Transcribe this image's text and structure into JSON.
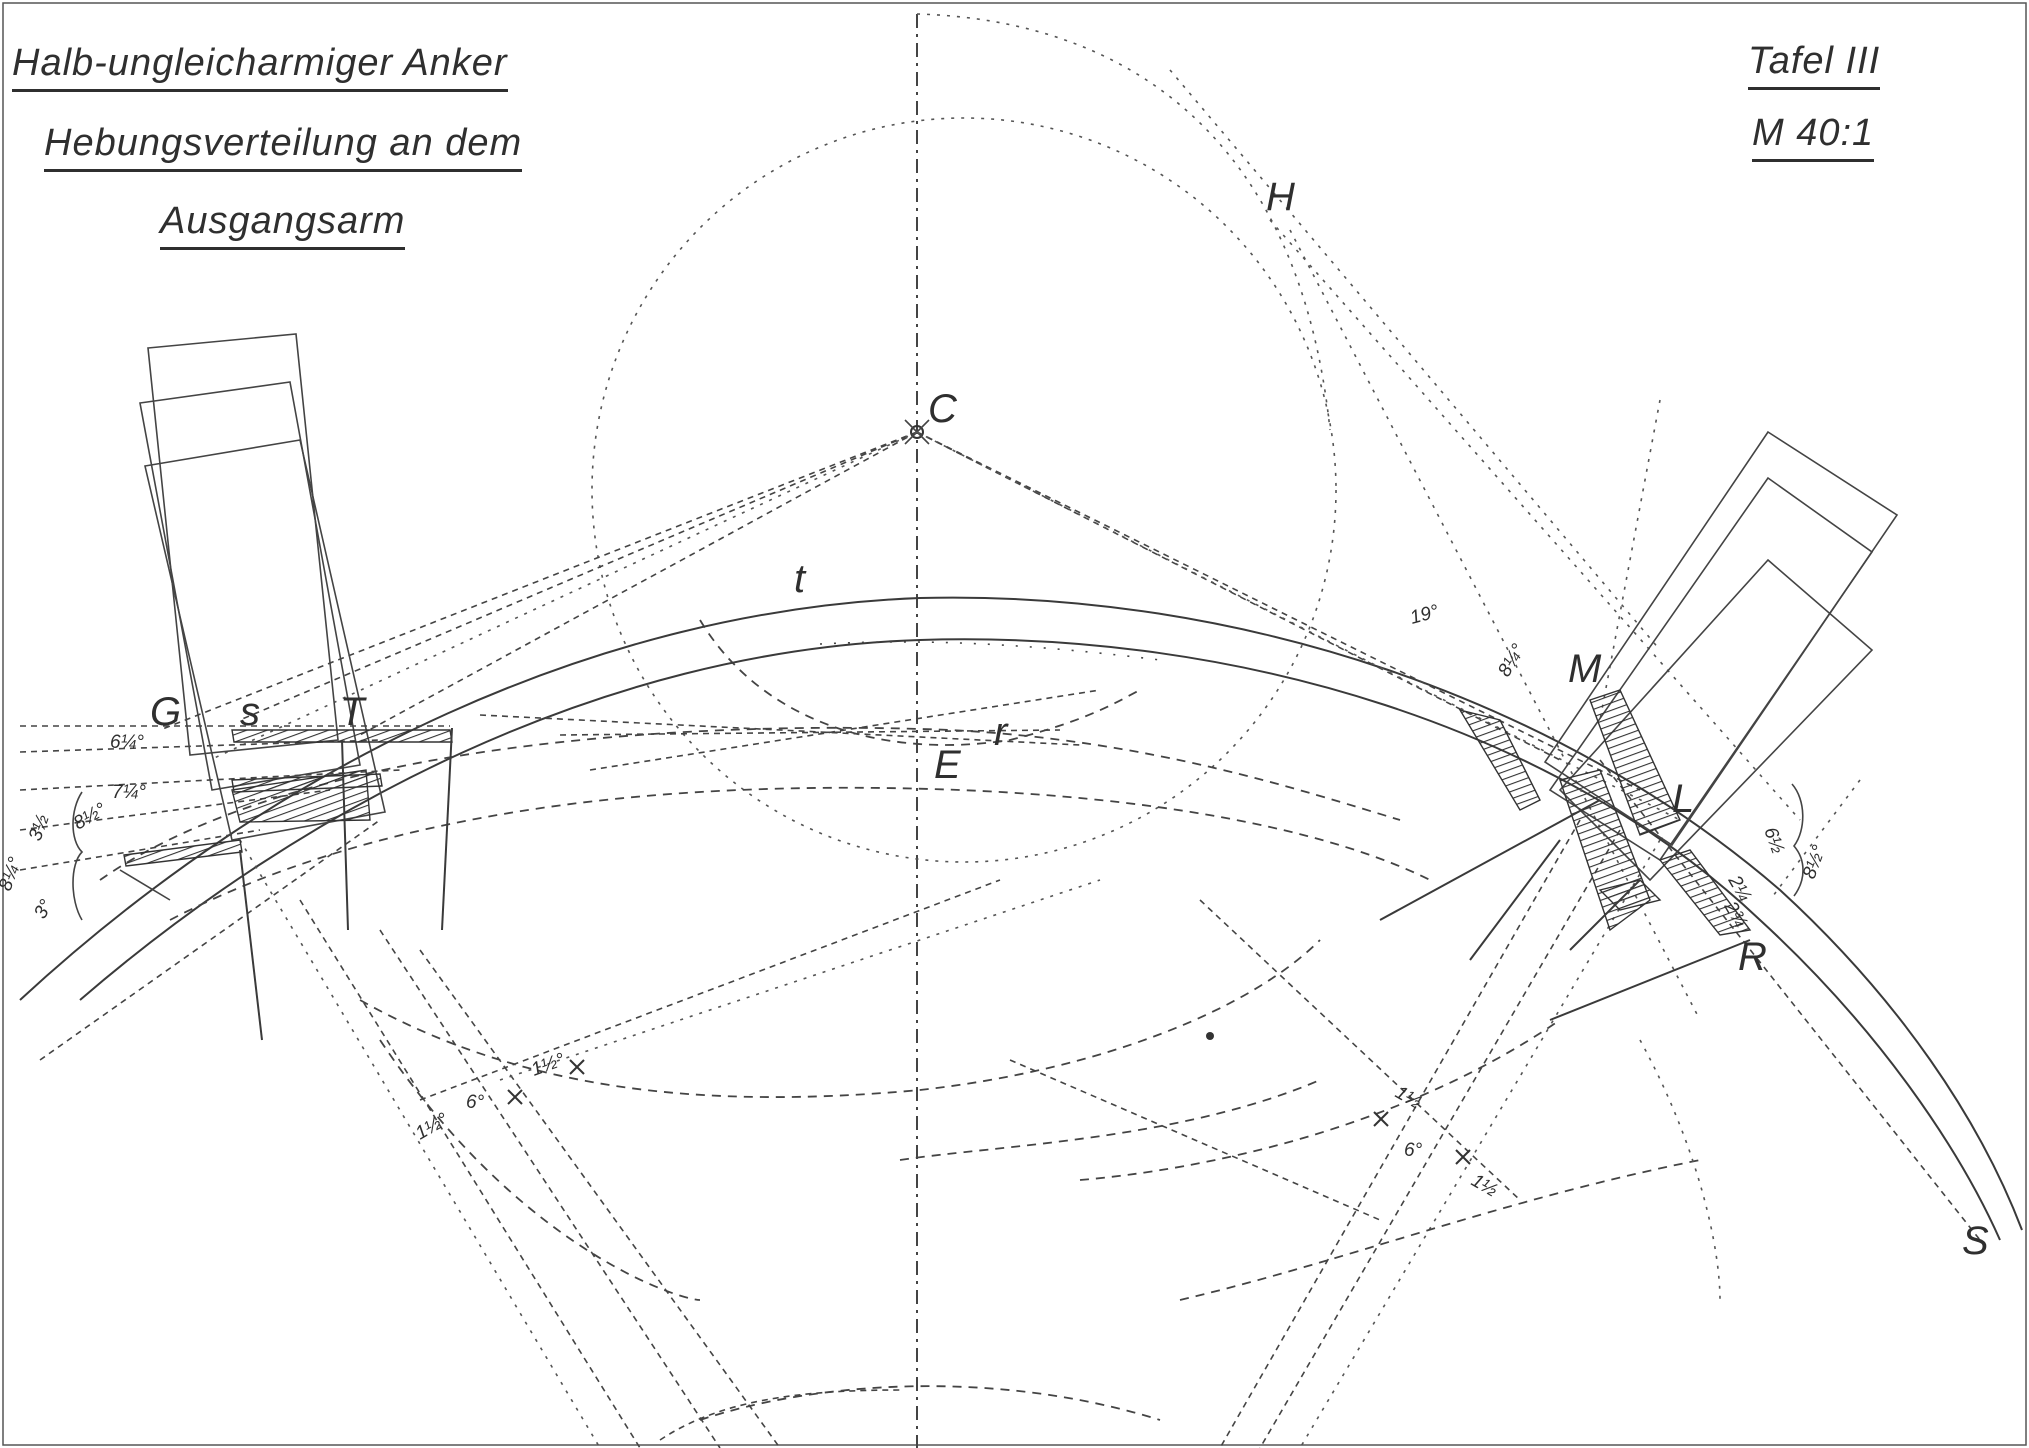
{
  "title_block": {
    "line1": "Halb-ungleicharmiger Anker",
    "line2": "Hebungsverteilung an dem",
    "line3": "Ausgangsarm",
    "plate": "Tafel III",
    "scale": "M 40:1"
  },
  "points": {
    "C": "C",
    "H": "H",
    "t": "t",
    "E": "E",
    "r": "r",
    "G": "G",
    "s": "s",
    "T": "T",
    "M": "M",
    "L": "L",
    "R": "R",
    "S": "S"
  },
  "angle_labels": {
    "left_6_1_4": "6¼°",
    "left_7_1_4": "7¼°",
    "left_8_1_2": "8½°",
    "left_3_1_2": "3½",
    "left_8_1_4": "8¼°",
    "left_3": "3°",
    "bottom_1_1_2_left": "1½°",
    "bottom_6_left": "6°",
    "bottom_1_1_2_mid": "1½°",
    "bottom_1_1_2_right": "1½",
    "bottom_6_right": "6°",
    "bottom_1_1_2_far": "1½",
    "top_19": "19°",
    "right_8_1_4": "8¼°",
    "right_6_1_2": "6½",
    "right_8_1_2": "8½°",
    "right_2_1_4": "2¼",
    "right_2_3_4": "2¾"
  }
}
